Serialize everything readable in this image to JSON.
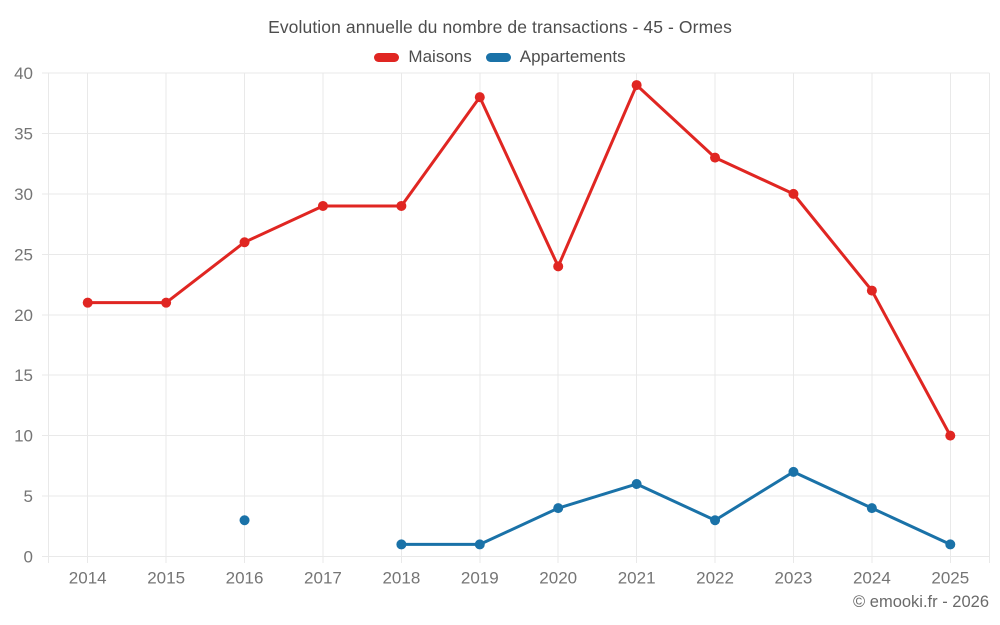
{
  "chart_data": {
    "type": "line",
    "title": "Evolution annuelle du nombre de transactions - 45 - Ormes",
    "categories": [
      "2014",
      "2015",
      "2016",
      "2017",
      "2018",
      "2019",
      "2020",
      "2021",
      "2022",
      "2023",
      "2024",
      "2025"
    ],
    "series": [
      {
        "name": "Maisons",
        "color": "#e02622",
        "values": [
          21,
          21,
          26,
          29,
          29,
          38,
          24,
          39,
          33,
          30,
          22,
          10
        ]
      },
      {
        "name": "Appartements",
        "color": "#1a72a8",
        "values": [
          null,
          null,
          3,
          null,
          1,
          1,
          4,
          6,
          3,
          7,
          4,
          1
        ]
      }
    ],
    "xlabel": "",
    "ylabel": "",
    "ylim": [
      0,
      40
    ],
    "ytick_step": 5,
    "yticks": [
      0,
      5,
      10,
      15,
      20,
      25,
      30,
      35,
      40
    ],
    "grid": true,
    "legend_position": "top",
    "grid_color": "#e9e9e9",
    "tick_label_color": "#757575",
    "title_color": "#4d4d4d"
  },
  "footer": {
    "copyright": "© emooki.fr - 2026"
  }
}
